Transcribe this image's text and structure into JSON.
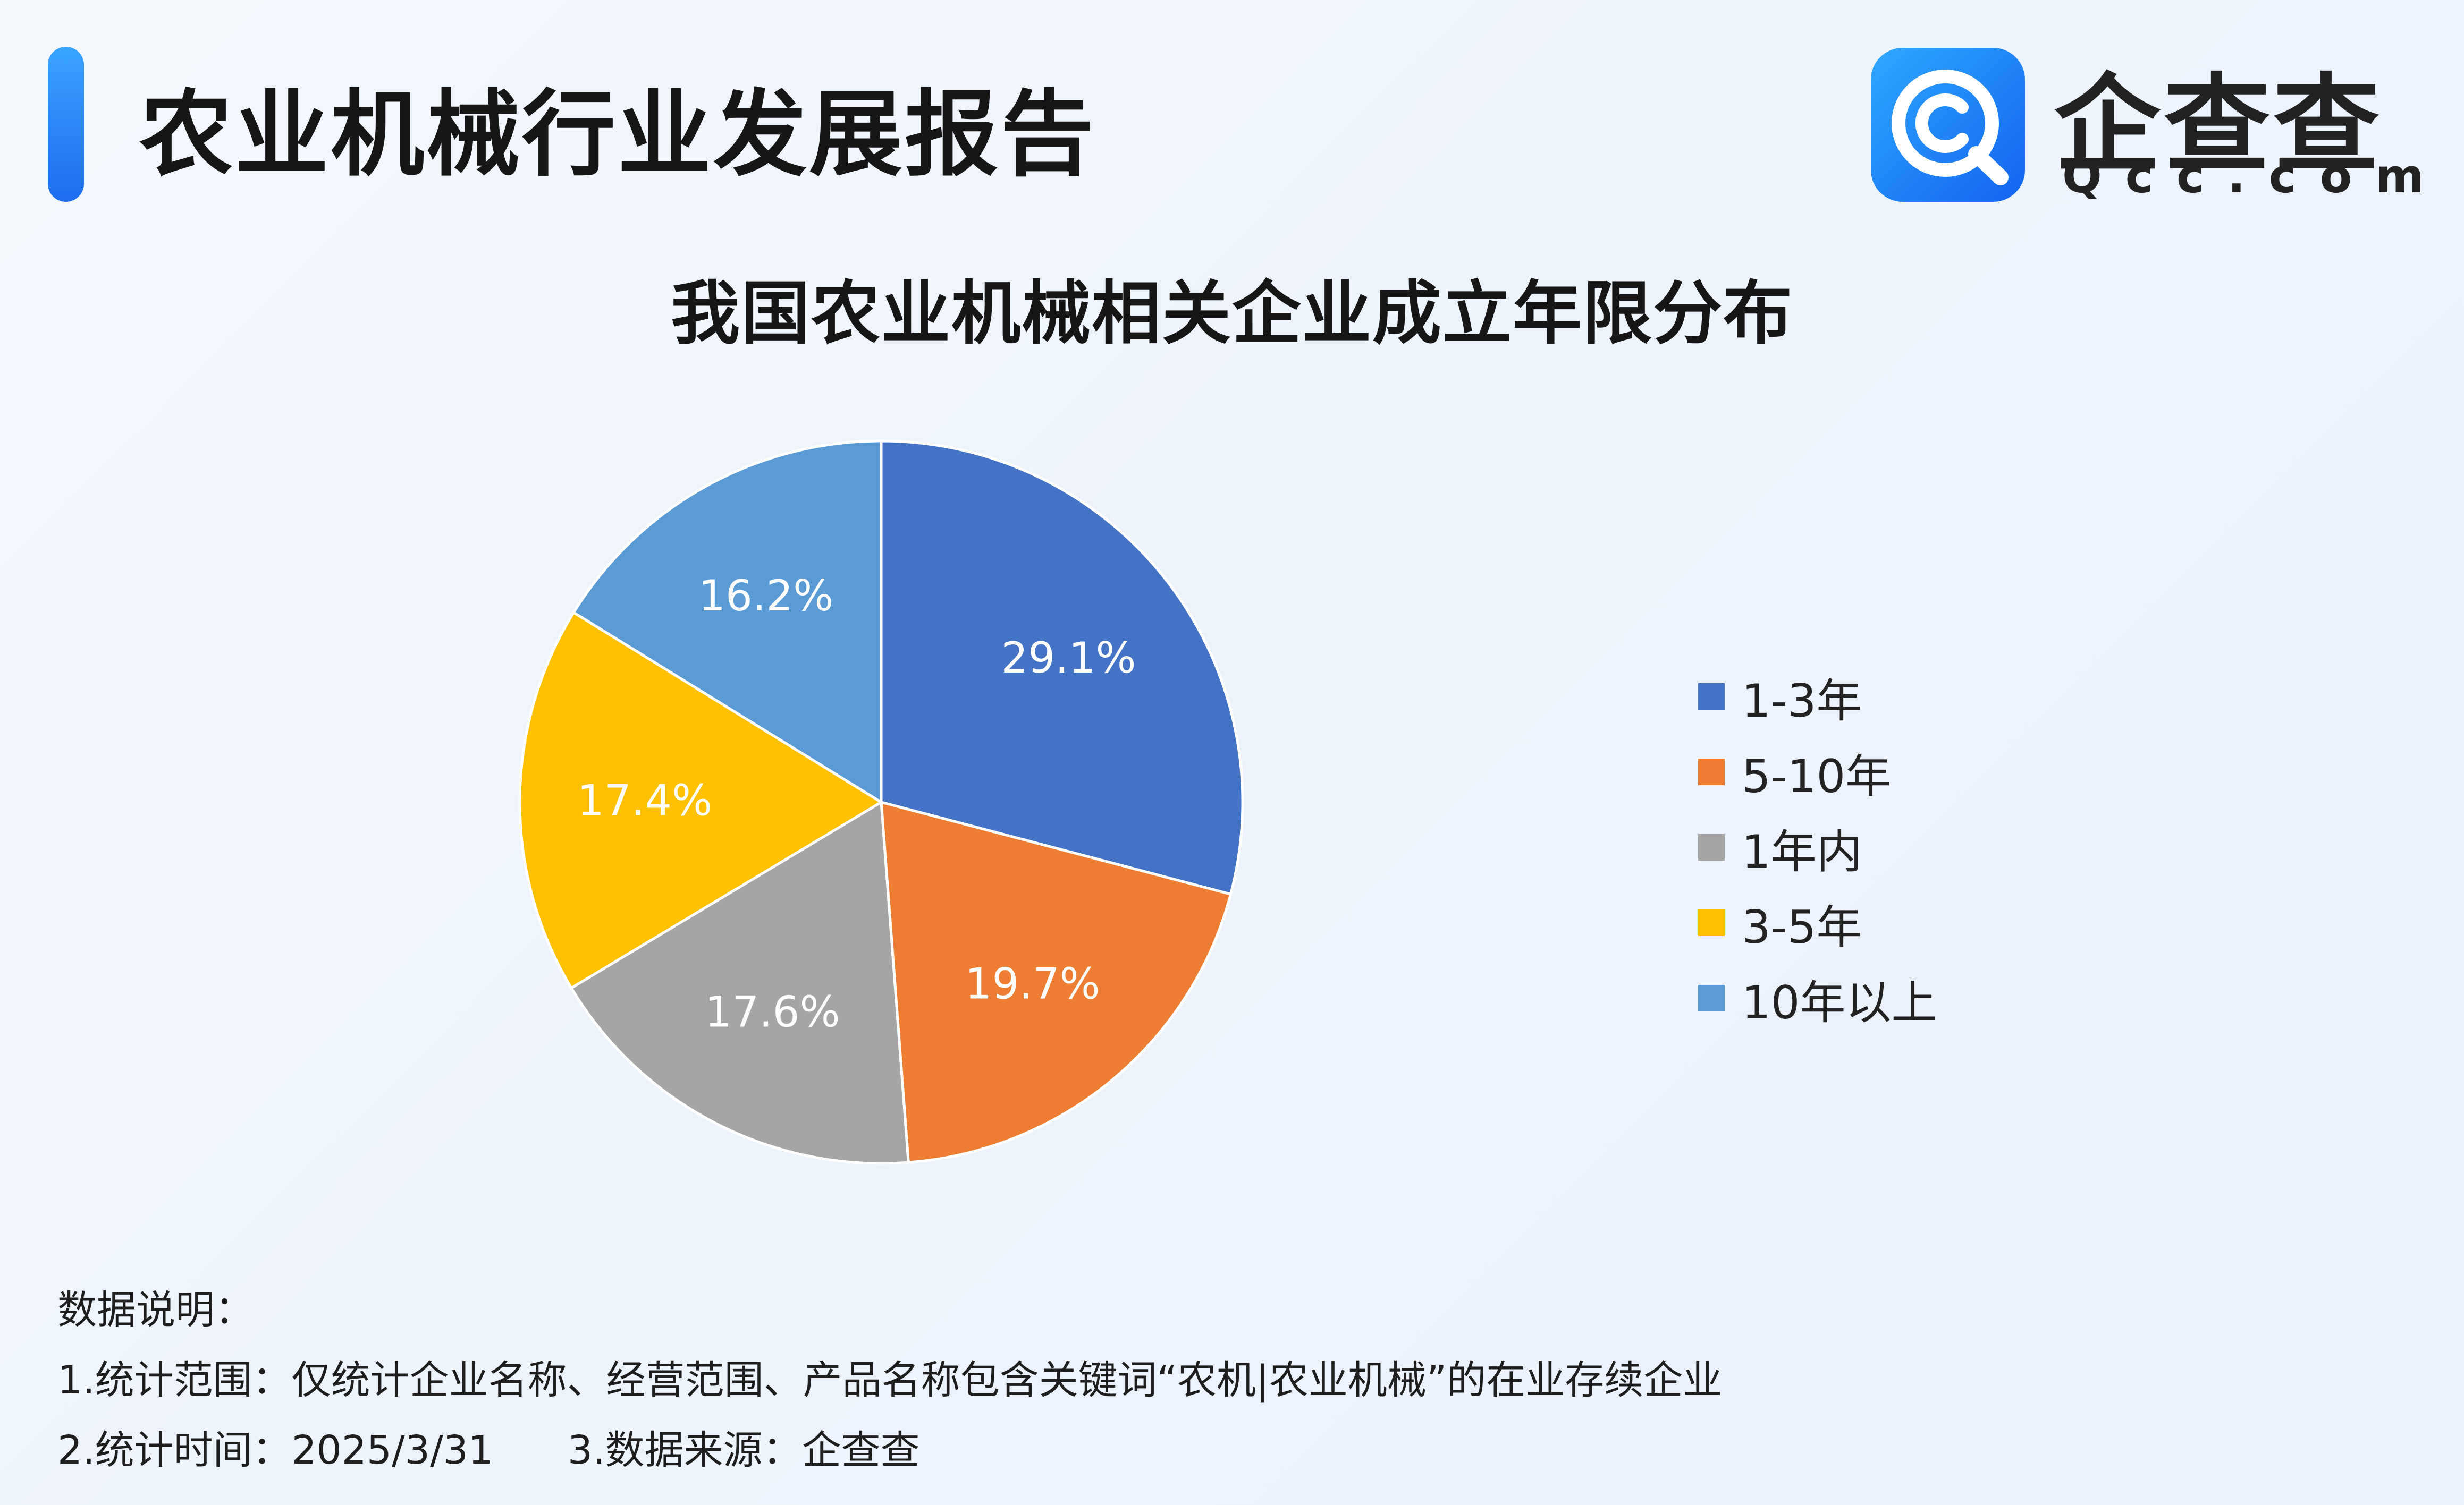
{
  "header": {
    "title": "农业机械行业发展报告",
    "logo_name": "企查查",
    "logo_domain": "Qcc.com",
    "accent_color": "#1f7cf5"
  },
  "chart_data": {
    "type": "pie",
    "title": "我国农业机械相关企业成立年限分布",
    "unit": "%",
    "legend_position": "right",
    "categories": [
      "1-3年",
      "5-10年",
      "1年内",
      "3-5年",
      "10年以上"
    ],
    "values": [
      29.1,
      19.7,
      17.6,
      17.4,
      16.2
    ],
    "labels": [
      "29.1%",
      "19.7%",
      "17.6%",
      "17.4%",
      "16.2%"
    ],
    "colors": [
      "#4472c4",
      "#ed7d31",
      "#a5a5a5",
      "#ffc000",
      "#5b9bd5"
    ],
    "start_angle": "12 o'clock",
    "direction": "clockwise"
  },
  "notes": {
    "heading": "数据说明：",
    "scope": "1.统计范围：仅统计企业名称、经营范围、产品名称包含关键词“农机|农业机械”的在业存续企业",
    "time": "2.统计时间：2025/3/31",
    "source": "3.数据来源：企查查"
  }
}
